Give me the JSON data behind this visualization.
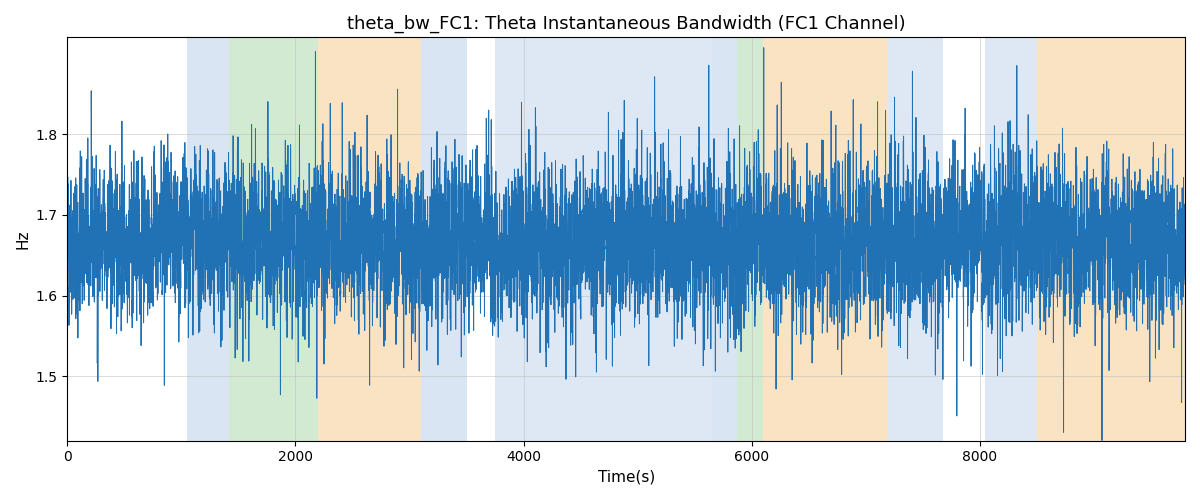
{
  "title": "theta_bw_FC1: Theta Instantaneous Bandwidth (FC1 Channel)",
  "xlabel": "Time(s)",
  "ylabel": "Hz",
  "xlim": [
    0,
    9800
  ],
  "ylim": [
    1.42,
    1.92
  ],
  "yticks": [
    1.5,
    1.6,
    1.7,
    1.8
  ],
  "xticks": [
    0,
    2000,
    4000,
    6000,
    8000
  ],
  "line_color": "#2171b5",
  "line_width": 0.7,
  "seed": 42,
  "n_points": 9800,
  "mean": 1.668,
  "std": 0.048,
  "bg_regions": [
    {
      "start": 1050,
      "end": 1420,
      "color": "#aec6e8",
      "alpha": 0.45
    },
    {
      "start": 1420,
      "end": 2200,
      "color": "#90c990",
      "alpha": 0.4
    },
    {
      "start": 2200,
      "end": 3100,
      "color": "#f5c888",
      "alpha": 0.5
    },
    {
      "start": 3100,
      "end": 3500,
      "color": "#aec6e8",
      "alpha": 0.45
    },
    {
      "start": 3750,
      "end": 5650,
      "color": "#aec6e8",
      "alpha": 0.4
    },
    {
      "start": 5650,
      "end": 5870,
      "color": "#aec6e8",
      "alpha": 0.45
    },
    {
      "start": 5870,
      "end": 6100,
      "color": "#90c990",
      "alpha": 0.4
    },
    {
      "start": 6100,
      "end": 7200,
      "color": "#f5c888",
      "alpha": 0.5
    },
    {
      "start": 7200,
      "end": 7680,
      "color": "#aec6e8",
      "alpha": 0.4
    },
    {
      "start": 8050,
      "end": 8500,
      "color": "#aec6e8",
      "alpha": 0.4
    },
    {
      "start": 8500,
      "end": 9800,
      "color": "#f5c888",
      "alpha": 0.5
    }
  ],
  "grid_color": "#bbbbbb",
  "grid_alpha": 0.7,
  "title_fontsize": 13
}
